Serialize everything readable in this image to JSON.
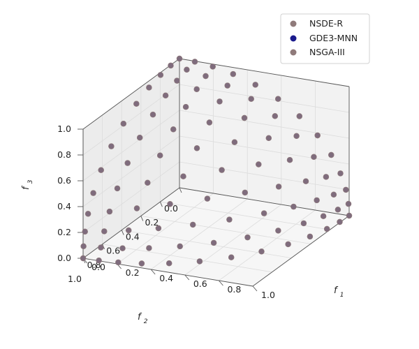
{
  "chart_data": {
    "type": "scatter",
    "projection": "3d",
    "title": "",
    "xlabel": "f1",
    "ylabel": "f2",
    "zlabel": "f3",
    "xlim": [
      0,
      1
    ],
    "ylim": [
      0,
      1
    ],
    "zlim": [
      0,
      1
    ],
    "xticks": [
      "0.0",
      "0.2",
      "0.4",
      "0.6",
      "0.8",
      "1.0"
    ],
    "yticks": [
      "0.0",
      "0.2",
      "0.4",
      "0.6",
      "0.8",
      "1.0"
    ],
    "zticks": [
      "0.0",
      "0.2",
      "0.4",
      "0.6",
      "0.8",
      "1.0"
    ],
    "grid": true,
    "legend_position": "top-right",
    "front": "unit sphere octant f1^2 + f2^2 + f3^2 = 1",
    "series": [
      {
        "name": "NSDE-R",
        "color": "#8f7a7a",
        "reference_divisions": 12,
        "marker": "circle"
      },
      {
        "name": "GDE3-MNN",
        "color": "#1a1a8c",
        "reference_divisions": 12,
        "marker": "circle"
      },
      {
        "name": "NSGA-III",
        "color": "#8f7a7a",
        "reference_divisions": 12,
        "marker": "circle"
      }
    ]
  }
}
